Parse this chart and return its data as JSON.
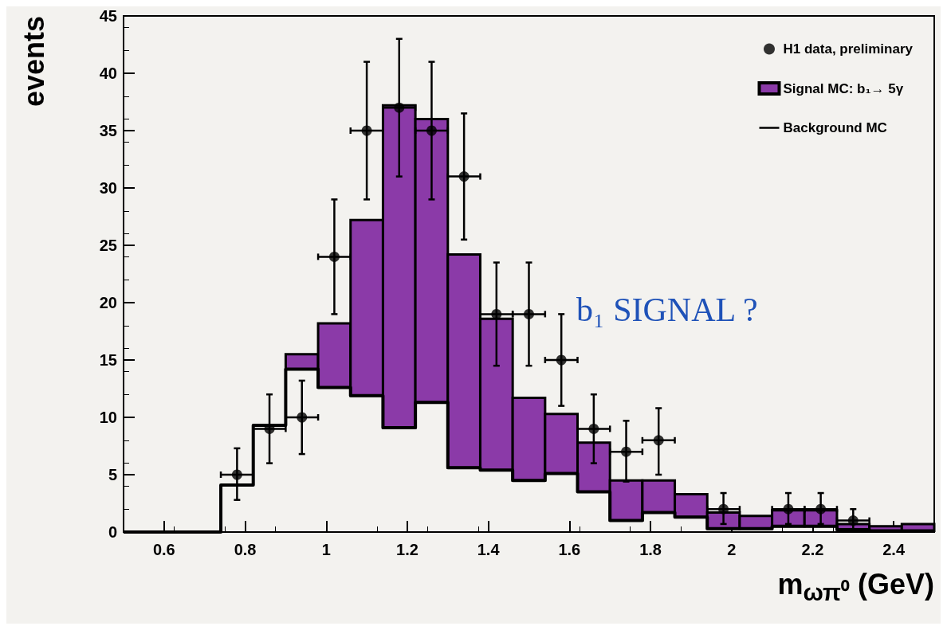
{
  "chart_data": {
    "type": "histogram",
    "xlabel": "m$_{ωπ⁰}$ (GeV)",
    "ylabel": "events",
    "legend": "top right",
    "grid": false,
    "bins": [
      0.5,
      0.58,
      0.66,
      0.74,
      0.82,
      0.9,
      0.98,
      1.06,
      1.14,
      1.22,
      1.3,
      1.38,
      1.46,
      1.54,
      1.62,
      1.7,
      1.78,
      1.86,
      1.94,
      2.02,
      2.1,
      2.18,
      2.26,
      2.34,
      2.42,
      2.5
    ],
    "xlim": [
      0.5,
      2.5
    ],
    "xticks": [
      0.6,
      0.8,
      1,
      1.2,
      1.4,
      1.6,
      1.8,
      2,
      2.2,
      2.4
    ],
    "ylim": [
      0,
      45
    ],
    "yticks": [
      0,
      5,
      10,
      15,
      20,
      25,
      30,
      35,
      40,
      45
    ],
    "annotations": [
      "b₁ SIGNAL ?"
    ],
    "series": [
      {
        "name": "H1 data, preliminary",
        "type": "scatter",
        "marker": "circle",
        "color": "#000000",
        "x": [
          0.78,
          0.86,
          0.94,
          1.02,
          1.1,
          1.18,
          1.26,
          1.34,
          1.42,
          1.5,
          1.58,
          1.66,
          1.74,
          1.82,
          1.98,
          2.14,
          2.22,
          2.3
        ],
        "values": [
          5,
          9,
          10,
          24,
          35,
          37,
          35,
          31,
          19,
          19,
          15,
          9,
          7,
          8,
          2,
          2,
          2,
          1
        ],
        "errors": [
          [
            2.8,
            7.3
          ],
          [
            6,
            12
          ],
          [
            6.8,
            13.2
          ],
          [
            19,
            29
          ],
          [
            29,
            41
          ],
          [
            31,
            43
          ],
          [
            29,
            41
          ],
          [
            25.5,
            36.5
          ],
          [
            14.5,
            23.5
          ],
          [
            14.5,
            23.5
          ],
          [
            11,
            19
          ],
          [
            6,
            12
          ],
          [
            4.4,
            9.7
          ],
          [
            5,
            10.8
          ],
          [
            0.7,
            3.4
          ],
          [
            0.7,
            3.4
          ],
          [
            0.7,
            3.4
          ],
          [
            0.2,
            2
          ]
        ],
        "xerrors": [
          0.04,
          0.04,
          0.04,
          0.04,
          0.04,
          0.04,
          0.04,
          0.04,
          0.04,
          0.04,
          0.04,
          0.04,
          0.04,
          0.04,
          0.04,
          0.04,
          0.04,
          0.04
        ]
      },
      {
        "name": "Signal MC: b₁→ 5γ",
        "color": "#8b3aa8",
        "values": [
          null,
          null,
          null,
          null,
          null,
          1.3,
          5.6,
          15.3,
          28.1,
          24.7,
          18.6,
          13.2,
          7.2,
          5.2,
          4.3,
          3.5,
          2.8,
          2.0,
          1.4,
          1.1,
          1.4,
          1.4,
          0.5,
          0.4,
          0.6
        ],
        "base": [
          null,
          null,
          null,
          null,
          null,
          14.2,
          12.6,
          11.9,
          9.1,
          11.3,
          5.6,
          5.4,
          4.5,
          5.1,
          3.5,
          1.0,
          1.7,
          1.3,
          0.3,
          0.3,
          0.5,
          0.5,
          0.2,
          0.1,
          0.1
        ]
      },
      {
        "name": "Background MC",
        "type": "step",
        "color": "#000000",
        "x": [
          0.5,
          0.58,
          0.66,
          0.74,
          0.82,
          0.9,
          0.98,
          1.06,
          1.14,
          1.22,
          1.3,
          1.38,
          1.46,
          1.54,
          1.62,
          1.7,
          1.78,
          1.86,
          1.94,
          2.02,
          2.1,
          2.18,
          2.26,
          2.34,
          2.42,
          2.5
        ],
        "values": [
          0,
          0,
          0,
          4.1,
          9.3,
          14.2,
          12.6,
          11.9,
          9.1,
          11.3,
          5.6,
          5.4,
          4.5,
          5.1,
          3.5,
          1.0,
          1.7,
          1.3,
          0.3,
          0.3,
          0.5,
          0.5,
          0.2,
          0.1,
          0.1,
          0.1
        ]
      }
    ]
  }
}
